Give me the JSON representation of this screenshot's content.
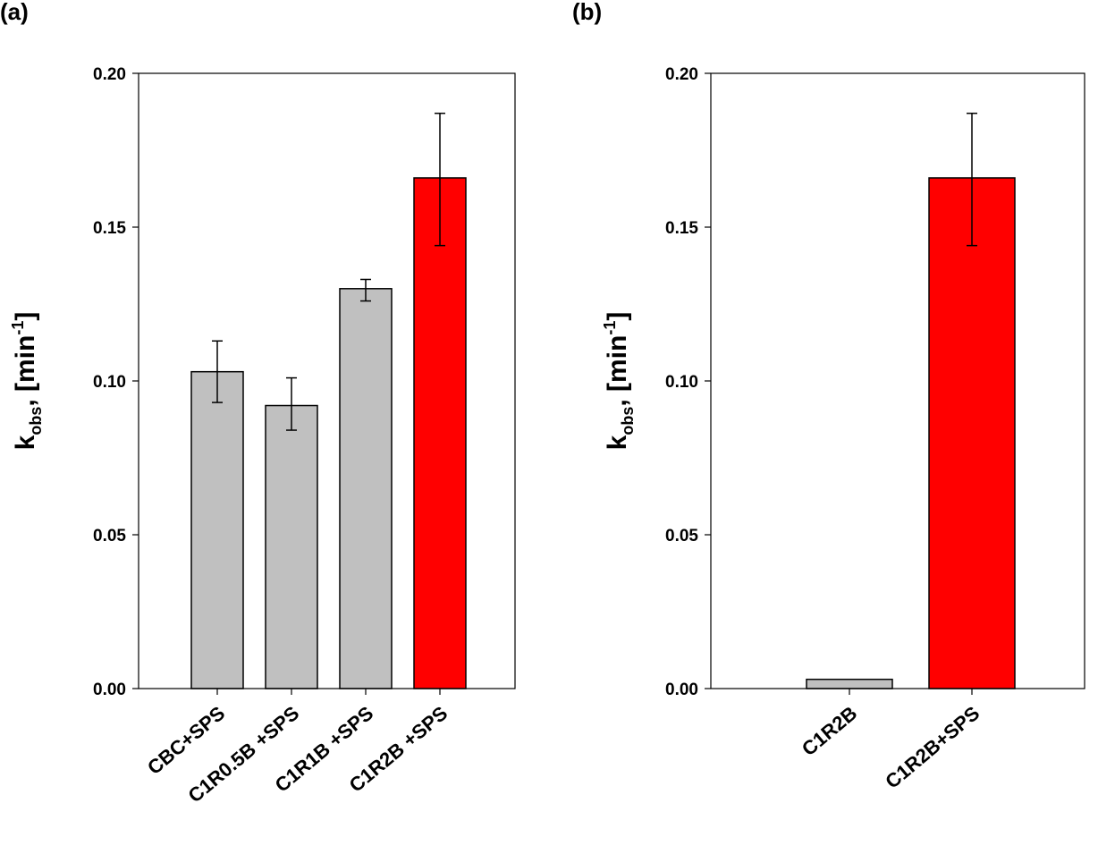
{
  "chart_data": [
    {
      "type": "bar",
      "panel_label": "(a)",
      "title": "",
      "xlabel": "",
      "ylabel": "k",
      "ylabel_sub": "obs",
      "ylabel_rest": ", [min",
      "ylabel_sup": "-1",
      "ylabel_end": "]",
      "ylim": [
        0,
        0.2
      ],
      "yticks": [
        "0.00",
        "0.05",
        "0.10",
        "0.15",
        "0.20"
      ],
      "categories": [
        "CBC+SPS",
        "C1R0.5B +SPS",
        "C1R1B +SPS",
        "C1R2B +SPS"
      ],
      "values": [
        0.103,
        0.092,
        0.13,
        0.166
      ],
      "error_upper": [
        0.113,
        0.101,
        0.133,
        0.187
      ],
      "error_lower": [
        0.093,
        0.084,
        0.126,
        0.144
      ],
      "colors": [
        "#c0c0c0",
        "#c0c0c0",
        "#c0c0c0",
        "#ff0000"
      ],
      "grid": false,
      "legend": "none"
    },
    {
      "type": "bar",
      "panel_label": "(b)",
      "title": "",
      "xlabel": "",
      "ylabel": "k",
      "ylabel_sub": "obs",
      "ylabel_rest": ", [min",
      "ylabel_sup": "-1",
      "ylabel_end": "]",
      "ylim": [
        0,
        0.2
      ],
      "yticks": [
        "0.00",
        "0.05",
        "0.10",
        "0.15",
        "0.20"
      ],
      "categories": [
        "C1R2B",
        "C1R2B+SPS"
      ],
      "values": [
        0.003,
        0.166
      ],
      "error_upper": [
        null,
        0.187
      ],
      "error_lower": [
        null,
        0.144
      ],
      "colors": [
        "#c0c0c0",
        "#ff0000"
      ],
      "grid": false,
      "legend": "none"
    }
  ]
}
